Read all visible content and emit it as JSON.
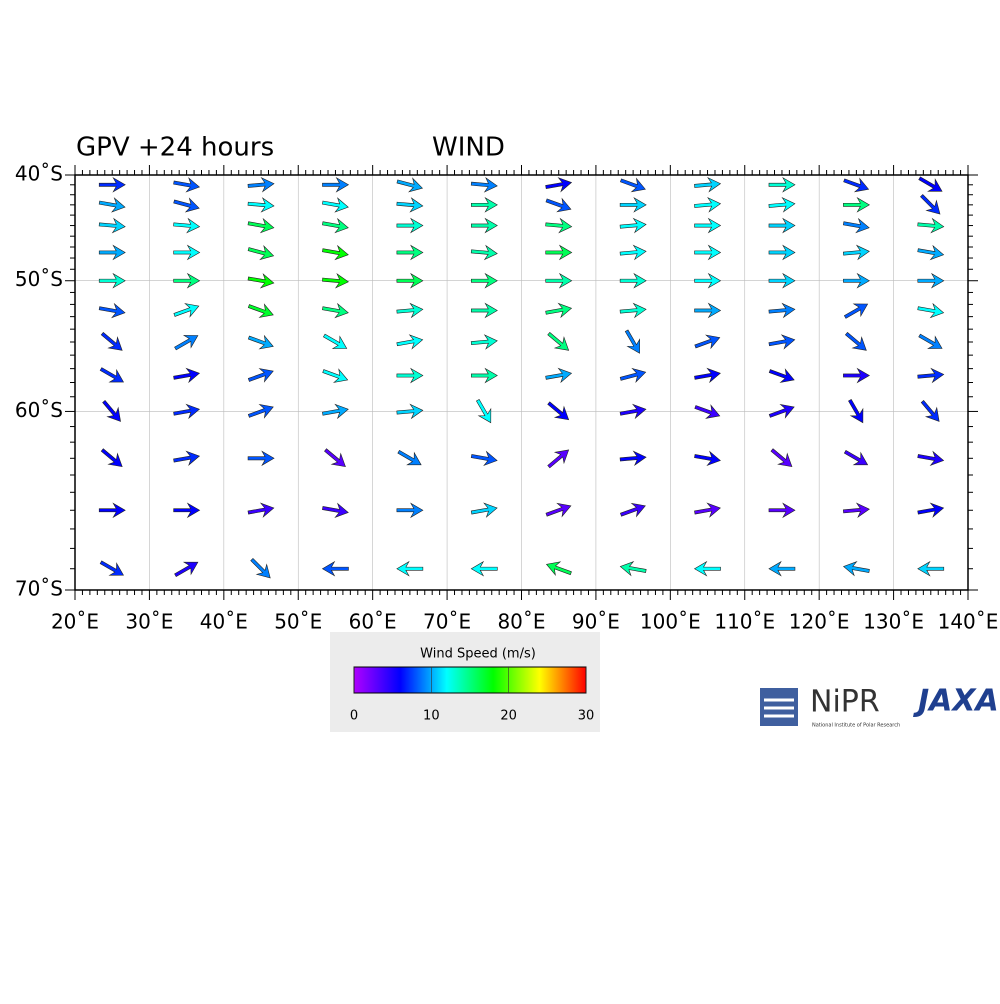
{
  "map": {
    "title": "GPV +24 hours",
    "subtitle": "WIND",
    "projection": "mercator",
    "xlim": [
      20,
      140
    ],
    "ylim": [
      -40,
      -70
    ],
    "xticks": [
      {
        "value": 20,
        "label": "20˚E"
      },
      {
        "value": 30,
        "label": "30˚E"
      },
      {
        "value": 40,
        "label": "40˚E"
      },
      {
        "value": 50,
        "label": "50˚E"
      },
      {
        "value": 60,
        "label": "60˚E"
      },
      {
        "value": 70,
        "label": "70˚E"
      },
      {
        "value": 80,
        "label": "80˚E"
      },
      {
        "value": 90,
        "label": "90˚E"
      },
      {
        "value": 100,
        "label": "100˚E"
      },
      {
        "value": 110,
        "label": "110˚E"
      },
      {
        "value": 120,
        "label": "120˚E"
      },
      {
        "value": 130,
        "label": "130˚E"
      },
      {
        "value": 140,
        "label": "140˚E"
      }
    ],
    "yticks": [
      {
        "value": -40,
        "label": "40˚S"
      },
      {
        "value": -50,
        "label": "50˚S"
      },
      {
        "value": -60,
        "label": "60˚S"
      },
      {
        "value": -70,
        "label": "70˚S"
      }
    ],
    "grid": true,
    "wind": {
      "lon": [
        25,
        35,
        45,
        55,
        65,
        75,
        85,
        95,
        105,
        115,
        125,
        135
      ],
      "lat": [
        -41,
        -43,
        -45,
        -47.5,
        -50,
        -52.5,
        -55,
        -57.5,
        -60,
        -63,
        -66,
        -69
      ],
      "speed": [
        [
          7,
          8,
          9,
          9,
          10,
          9,
          6,
          8,
          11,
          13,
          7,
          6
        ],
        [
          10,
          8,
          12,
          12,
          11,
          14,
          8,
          11,
          12,
          12,
          15,
          7
        ],
        [
          11,
          12,
          16,
          15,
          13,
          14,
          15,
          12,
          12,
          11,
          9,
          14
        ],
        [
          10,
          12,
          16,
          18,
          15,
          14,
          16,
          12,
          12,
          11,
          11,
          10
        ],
        [
          13,
          15,
          18,
          18,
          16,
          15,
          14,
          13,
          12,
          11,
          10,
          10
        ],
        [
          8,
          12,
          17,
          15,
          13,
          14,
          15,
          13,
          10,
          9,
          8,
          12
        ],
        [
          7,
          9,
          10,
          12,
          12,
          13,
          15,
          9,
          8,
          8,
          8,
          9
        ],
        [
          7,
          6,
          8,
          12,
          13,
          14,
          10,
          8,
          6,
          6,
          5,
          7
        ],
        [
          6,
          7,
          8,
          10,
          11,
          12,
          6,
          5,
          4,
          5,
          6,
          7
        ],
        [
          6,
          7,
          8,
          3,
          9,
          8,
          3,
          6,
          6,
          3,
          4,
          5
        ],
        [
          6,
          6,
          4,
          4,
          9,
          11,
          3,
          4,
          3,
          3,
          3,
          6
        ],
        [
          7,
          5,
          9,
          8,
          12,
          12,
          16,
          14,
          12,
          10,
          10,
          11
        ]
      ],
      "direction": [
        [
          0,
          -10,
          5,
          0,
          -15,
          -5,
          10,
          -20,
          5,
          0,
          -20,
          -30
        ],
        [
          -10,
          -15,
          -5,
          -10,
          -5,
          0,
          -20,
          0,
          5,
          5,
          0,
          -45
        ],
        [
          -5,
          -5,
          -10,
          -10,
          0,
          0,
          -5,
          5,
          0,
          0,
          -10,
          -5
        ],
        [
          0,
          0,
          -15,
          -10,
          0,
          -5,
          0,
          5,
          0,
          0,
          5,
          -10
        ],
        [
          0,
          0,
          -10,
          -5,
          0,
          0,
          0,
          0,
          0,
          0,
          0,
          0
        ],
        [
          -10,
          20,
          -20,
          -10,
          5,
          0,
          10,
          5,
          0,
          5,
          30,
          -10
        ],
        [
          -40,
          30,
          -20,
          -30,
          10,
          5,
          -40,
          -60,
          20,
          10,
          -40,
          -30
        ],
        [
          -30,
          10,
          20,
          -20,
          0,
          0,
          10,
          15,
          10,
          -20,
          0,
          5
        ],
        [
          -50,
          10,
          20,
          10,
          5,
          -60,
          -40,
          10,
          -20,
          20,
          -60,
          -50
        ],
        [
          -40,
          10,
          0,
          -40,
          -30,
          -10,
          40,
          5,
          -10,
          -40,
          -30,
          -10
        ],
        [
          0,
          0,
          10,
          -10,
          0,
          10,
          20,
          20,
          10,
          0,
          5,
          10
        ],
        [
          -30,
          30,
          -45,
          180,
          180,
          180,
          160,
          170,
          180,
          180,
          170,
          180
        ]
      ]
    },
    "colorbar": {
      "title": "Wind Speed (m/s)",
      "lim": [
        0,
        30
      ],
      "ticks": [
        0,
        10,
        20,
        30
      ],
      "colors": [
        "#b000ff",
        "#0000ff",
        "#00ffff",
        "#00ff00",
        "#ffff00",
        "#ff0000"
      ]
    },
    "logos": {
      "nipr": "NiPR",
      "nipr_caption": "National Institute of Polar Research",
      "jaxa": "JAXA"
    }
  }
}
